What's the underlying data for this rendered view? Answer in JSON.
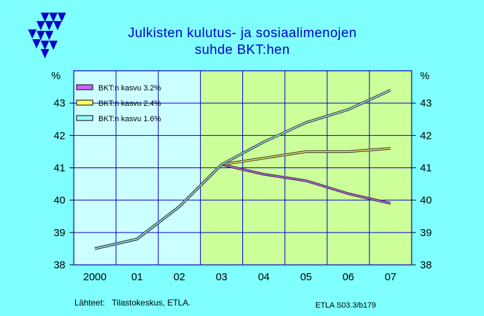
{
  "chart_data": {
    "type": "line",
    "title": "Julkisten kulutus- ja sosiaalimenojen",
    "subtitle": "suhde BKT:hen",
    "ylabel": "%",
    "ylabel_right": "%",
    "categories": [
      "2000",
      "01",
      "02",
      "03",
      "04",
      "05",
      "06",
      "07"
    ],
    "ylim": [
      38,
      44
    ],
    "yticks": [
      38,
      39,
      40,
      41,
      42,
      43
    ],
    "grid": true,
    "legend_position": "top-left",
    "forecast_region_start": "03",
    "series": [
      {
        "name": "BKT:n kasvu 3.2%",
        "color": "#cc66ff",
        "values": [
          38.5,
          38.8,
          39.8,
          41.1,
          40.8,
          40.6,
          40.2,
          39.9
        ]
      },
      {
        "name": "BKT:n kasvu 2.4%",
        "color": "#ffff66",
        "values": [
          38.5,
          38.8,
          39.8,
          41.1,
          41.3,
          41.5,
          41.5,
          41.6
        ]
      },
      {
        "name": "BKT:n kasvu 1.6%",
        "color": "#99ffff",
        "values": [
          38.5,
          38.8,
          39.8,
          41.1,
          41.8,
          42.4,
          42.8,
          43.4
        ]
      }
    ]
  },
  "colors": {
    "background": "#7fffff",
    "plot_history": "#ccffff",
    "plot_forecast": "#ccff99",
    "grid": "#0000cc",
    "title": "#0000cc"
  },
  "logo": {
    "icon": "triangle-pattern-logo"
  },
  "source": "Lähteet:   Tilastokeskus, ETLA.",
  "code": "ETLA S03.3/b179"
}
